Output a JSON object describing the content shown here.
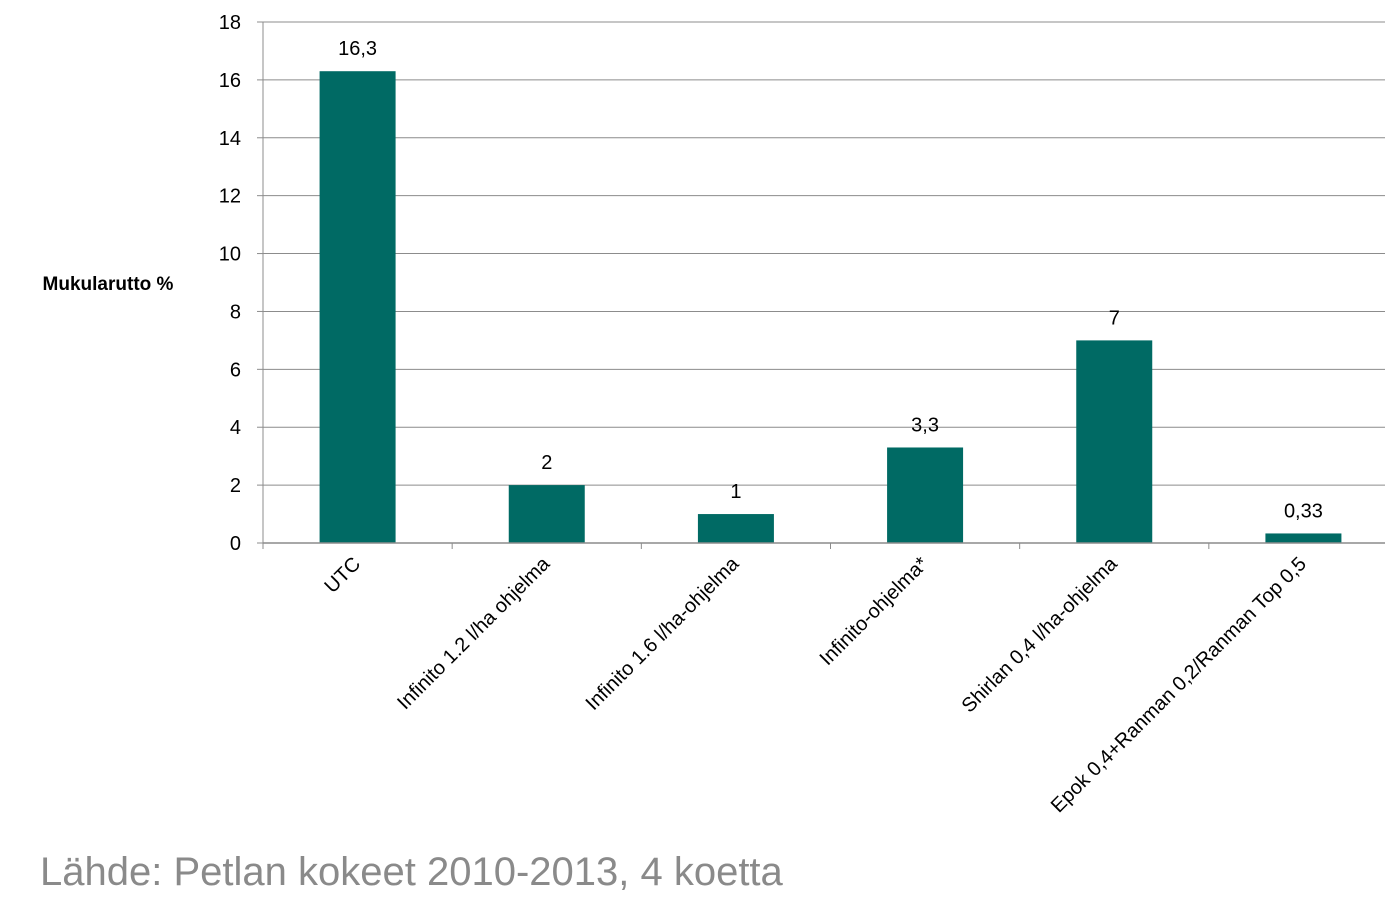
{
  "chart_data": {
    "type": "bar",
    "categories": [
      "UTC",
      "Infinito 1.2 l/ha ohjelma",
      "Infinito 1.6 l/ha-ohjelma",
      "Infinito-ohjelma*",
      "Shirlan 0,4 l/ha-ohjelma",
      "Epok 0,4+Ranman 0,2/Ranman Top 0,5"
    ],
    "values": [
      16.3,
      2,
      1,
      3.3,
      7,
      0.33
    ],
    "data_labels": [
      "16,3",
      "2",
      "1",
      "3,3",
      "7",
      "0,33"
    ],
    "ylabel": "Mukularutto %",
    "ylim": [
      0,
      18
    ],
    "yticks": [
      0,
      2,
      4,
      6,
      8,
      10,
      12,
      14,
      16,
      18
    ],
    "grid": true,
    "bar_color": "#006a64",
    "grid_color": "#8c8c8c"
  },
  "source_text": "Lähde: Petlan kokeet 2010-2013, 4 koetta"
}
